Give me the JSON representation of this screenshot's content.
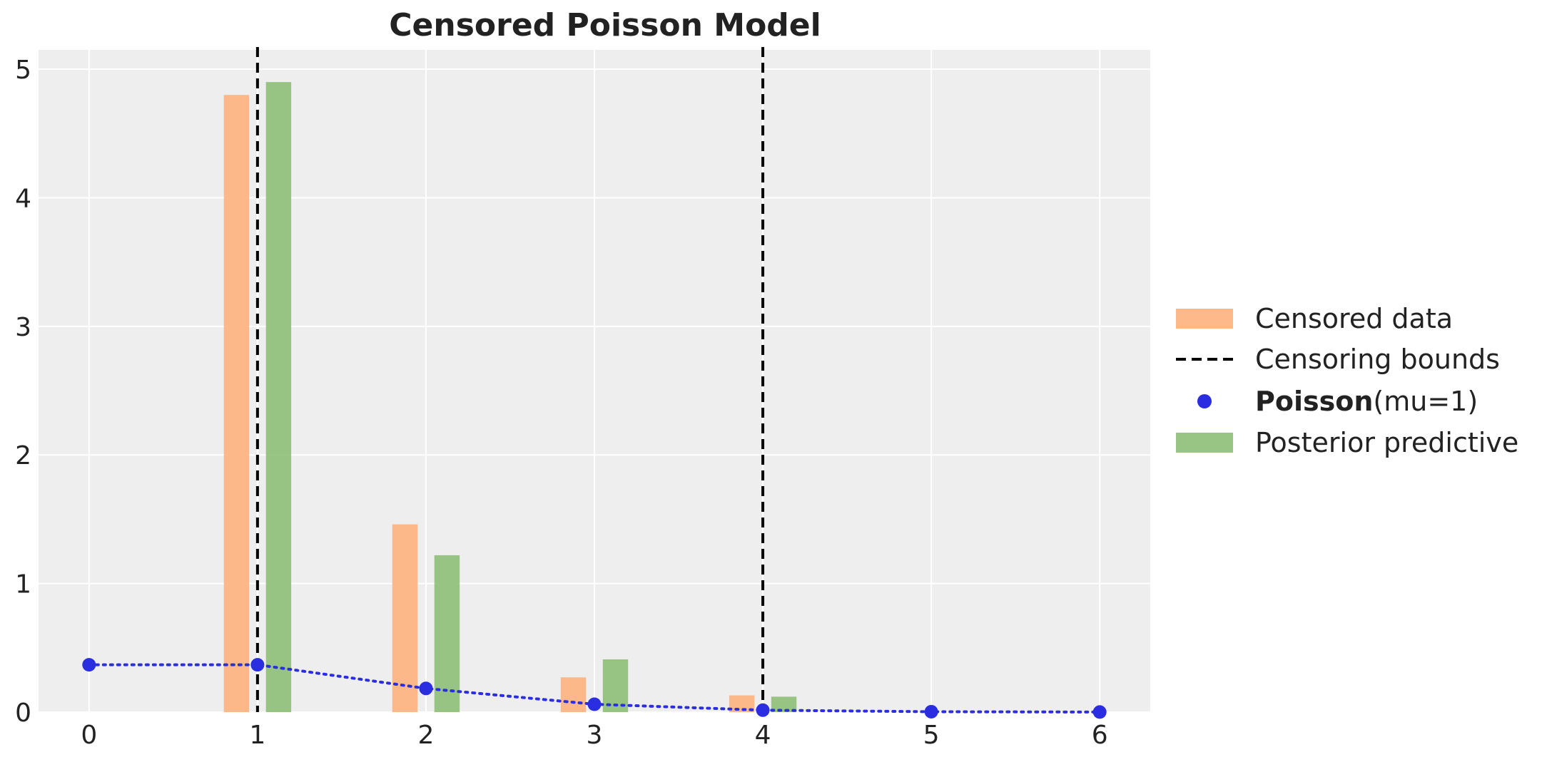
{
  "chart_data": {
    "type": "bar",
    "title": "Censored Poisson Model",
    "xlabel": "",
    "ylabel": "",
    "xlim": [
      -0.3,
      6.3
    ],
    "ylim": [
      0,
      5.15
    ],
    "x_ticks": [
      "0",
      "1",
      "2",
      "3",
      "4",
      "5",
      "6"
    ],
    "y_ticks": [
      "0",
      "1",
      "2",
      "3",
      "4",
      "5"
    ],
    "grid": true,
    "background_color": "#eeeeee",
    "legend_position": "right",
    "series": [
      {
        "name": "Censored data",
        "kind": "bar",
        "color": "#fdb37f",
        "x": [
          1,
          2,
          3,
          4
        ],
        "values": [
          4.8,
          1.46,
          0.27,
          0.13
        ]
      },
      {
        "name": "Posterior predictive",
        "kind": "bar",
        "color": "#8fc07a",
        "x": [
          1,
          2,
          3,
          4
        ],
        "values": [
          4.9,
          1.22,
          0.41,
          0.12
        ]
      },
      {
        "name_bold": "Poisson",
        "name_rest": "(mu=1)",
        "kind": "line-dotted-markers",
        "color": "#2b2de0",
        "x": [
          0,
          1,
          2,
          3,
          4,
          5,
          6
        ],
        "values": [
          0.368,
          0.368,
          0.184,
          0.061,
          0.015,
          0.003,
          0.0005
        ]
      },
      {
        "name": "Censoring bounds",
        "kind": "vline-dashed",
        "color": "#000000",
        "x": [
          1,
          4
        ]
      }
    ],
    "legend": [
      {
        "key": "censored",
        "label": "Censored data"
      },
      {
        "key": "bounds",
        "label": "Censoring bounds"
      },
      {
        "key": "poisson",
        "label_bold": "Poisson",
        "label_rest": "(mu=1)"
      },
      {
        "key": "posterior",
        "label": "Posterior predictive"
      }
    ]
  }
}
